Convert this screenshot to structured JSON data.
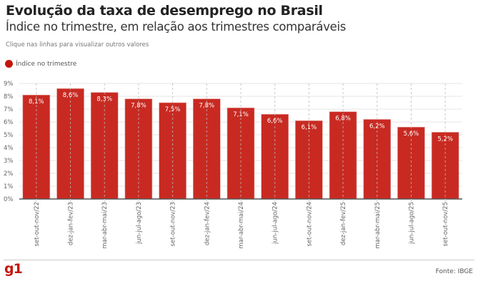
{
  "header": {
    "title": "Evolução da taxa de desemprego no Brasil",
    "subtitle": "Índice no trimestre, em relação aos trimestres comparáveis",
    "hint": "Clique nas linhas para visualizar outros valores"
  },
  "legend": {
    "label": "Índice no trimestre",
    "color": "#c4170c"
  },
  "footer": {
    "logo": "g1",
    "source": "Fonte: IBGE"
  },
  "chart_data": {
    "type": "bar",
    "title": "Evolução da taxa de desemprego no Brasil",
    "subtitle": "Índice no trimestre, em relação aos trimestres comparáveis",
    "xlabel": "",
    "ylabel": "",
    "ylim": [
      0,
      9
    ],
    "yticks": [
      "0%",
      "1%",
      "2%",
      "3%",
      "4%",
      "5%",
      "6%",
      "7%",
      "8%",
      "9%"
    ],
    "grid": true,
    "legend_position": "top-left",
    "bar_color": "#c82a22",
    "categories": [
      "set-out-nov/22",
      "dez-jan-fev/23",
      "mar-abr-mai/23",
      "jun-jul-ago/23",
      "set-out-nov/23",
      "dez-jan-fev/24",
      "mar-abr-mai/24",
      "jun-jul-ago/24",
      "set-out-nov/24",
      "dez-jan-fev/25",
      "mar-abr-mai/25",
      "jun-jul-ago/25",
      "set-out-nov/25"
    ],
    "series": [
      {
        "name": "Índice no trimestre",
        "values": [
          8.1,
          8.6,
          8.3,
          7.8,
          7.5,
          7.8,
          7.1,
          6.6,
          6.1,
          6.8,
          6.2,
          5.6,
          5.2
        ],
        "labels": [
          "8,1%",
          "8,6%",
          "8,3%",
          "7,8%",
          "7,5%",
          "7,8%",
          "7,1%",
          "6,6%",
          "6,1%",
          "6,8%",
          "6,2%",
          "5,6%",
          "5,2%"
        ]
      }
    ]
  }
}
